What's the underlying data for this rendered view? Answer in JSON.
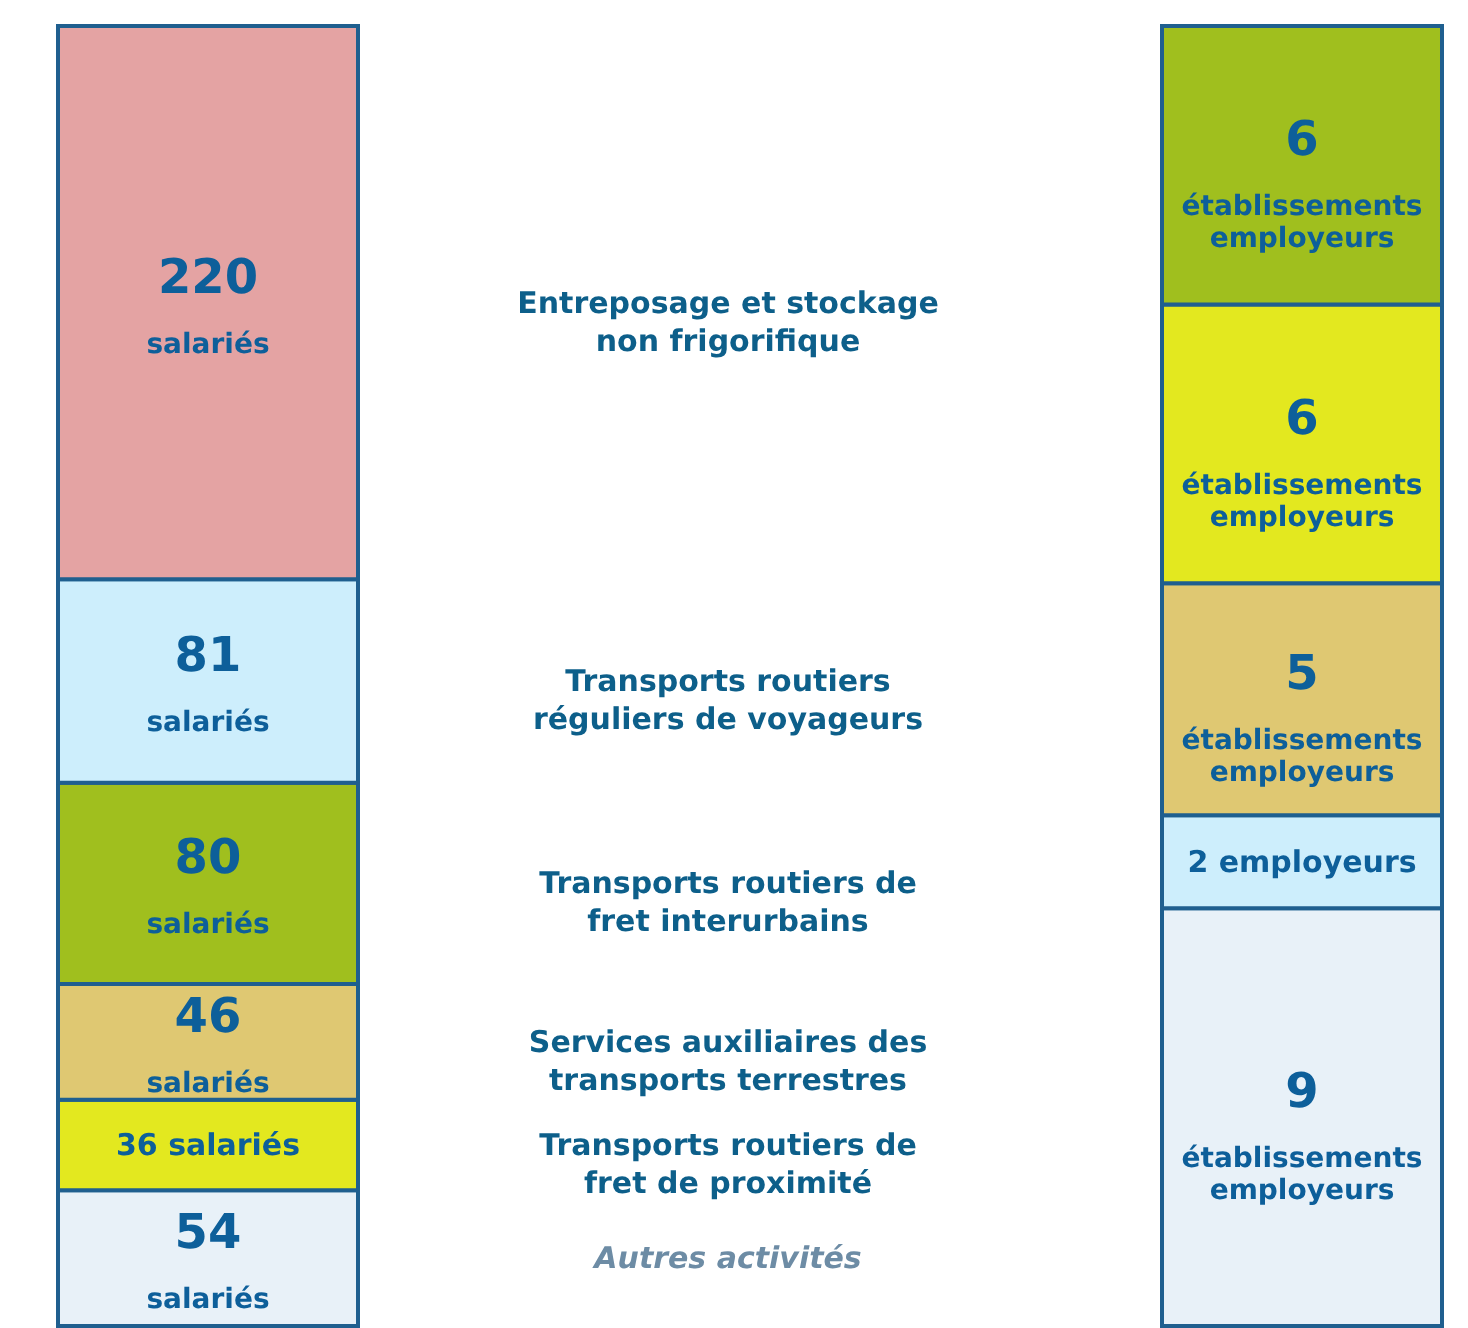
{
  "chart_data": [
    {
      "type": "bar",
      "stacked": true,
      "legend": false,
      "categories": [
        null
      ],
      "series": [
        {
          "name": "Autres activités",
          "color": "#e8f1f8",
          "values": [
            54
          ],
          "value_labels": [
            "54 salariés"
          ]
        },
        {
          "name": "Transports routiers de fret de proximité",
          "color": "#e3e81f",
          "values": [
            36
          ],
          "value_labels": [
            "36 salariés"
          ]
        },
        {
          "name": "Services auxiliaires des transports terrestres",
          "color": "#dfc872",
          "values": [
            46
          ],
          "value_labels": [
            "46 salariés"
          ]
        },
        {
          "name": "Transports routiers de fret interurbains",
          "color": "#a0bf1e",
          "values": [
            80
          ],
          "value_labels": [
            "80 salariés"
          ]
        },
        {
          "name": "Transports routiers réguliers de voyageurs",
          "color": "#cdeefc",
          "values": [
            81
          ],
          "value_labels": [
            "81 salariés"
          ]
        },
        {
          "name": "Entreposage et stockage non frigorifique",
          "color": "#e4a3a3",
          "values": [
            220
          ],
          "value_labels": [
            "220 salariés"
          ]
        }
      ]
    },
    {
      "type": "bar",
      "stacked": true,
      "legend": false,
      "categories": [
        null
      ],
      "series": [
        {
          "color": "#e8f1f8",
          "values": [
            9
          ],
          "value_labels": [
            "9 établissements employeurs"
          ]
        },
        {
          "color": "#cdeefc",
          "values": [
            2
          ],
          "value_labels": [
            "2 employeurs"
          ]
        },
        {
          "color": "#dfc872",
          "values": [
            5
          ],
          "value_labels": [
            "5 établissements employeurs"
          ]
        },
        {
          "color": "#e3e81f",
          "values": [
            6
          ],
          "value_labels": [
            "6 établissements employeurs"
          ]
        },
        {
          "color": "#a0bf1e",
          "values": [
            6
          ],
          "value_labels": [
            "6 établissements employeurs"
          ]
        }
      ]
    }
  ]
}
